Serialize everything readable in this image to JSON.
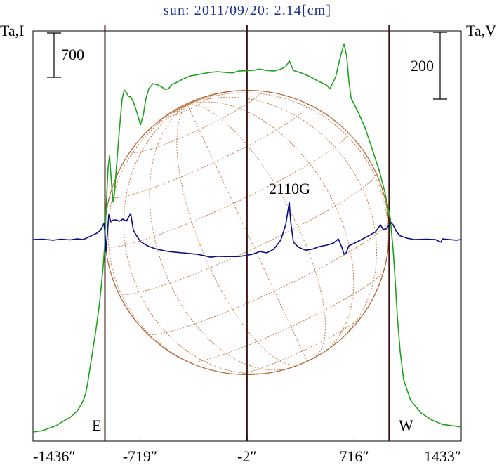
{
  "chart_data": {
    "type": "line",
    "title": "sun: 2011/09/20: 2.14[cm]",
    "xlabel": "",
    "ylabel_left": "Ta,I",
    "ylabel_right": "Ta,V",
    "xlim": [
      -1436,
      1433
    ],
    "xticks": [
      -1436,
      -719,
      -2,
      716,
      1433
    ],
    "xtick_labels": [
      "-1436″",
      "-719″",
      "-2″",
      "716″",
      "1433″"
    ],
    "scale_bars": {
      "left": "700",
      "right": "200"
    },
    "vlines": [
      -954,
      -2,
      950
    ],
    "limb_labels": {
      "east": "E",
      "west": "W"
    },
    "annotations": [
      {
        "text": "2110G"
      }
    ],
    "grid": false,
    "colors": {
      "title": "#203090",
      "reference_lines": "#3c1414",
      "disk": "#b4622e",
      "disk_grid": "#c47a4a"
    },
    "series": [
      {
        "axis": "left",
        "color": "#1fa01f",
        "points": [
          [
            -1436,
            0
          ],
          [
            -1375,
            20
          ],
          [
            -1328,
            60
          ],
          [
            -1281,
            100
          ],
          [
            -1234,
            170
          ],
          [
            -1187,
            230
          ],
          [
            -1140,
            330
          ],
          [
            -1102,
            480
          ],
          [
            -1083,
            610
          ],
          [
            -1069,
            780
          ],
          [
            -1055,
            1000
          ],
          [
            -1036,
            1280
          ],
          [
            -1013,
            1630
          ],
          [
            -989,
            2060
          ],
          [
            -966,
            2610
          ],
          [
            -956,
            2940
          ],
          [
            -947,
            3500
          ],
          [
            -933,
            4170
          ],
          [
            -923,
            4370
          ],
          [
            -914,
            4060
          ],
          [
            -900,
            3640
          ],
          [
            -890,
            3780
          ],
          [
            -876,
            4220
          ],
          [
            -857,
            4780
          ],
          [
            -839,
            5260
          ],
          [
            -825,
            5410
          ],
          [
            -810,
            5370
          ],
          [
            -796,
            5310
          ],
          [
            -782,
            5300
          ],
          [
            -763,
            5220
          ],
          [
            -740,
            5060
          ],
          [
            -716,
            4860
          ],
          [
            -698,
            5000
          ],
          [
            -679,
            5280
          ],
          [
            -660,
            5430
          ],
          [
            -632,
            5510
          ],
          [
            -600,
            5490
          ],
          [
            -575,
            5460
          ],
          [
            -550,
            5420
          ],
          [
            -528,
            5430
          ],
          [
            -505,
            5500
          ],
          [
            -481,
            5520
          ],
          [
            -434,
            5580
          ],
          [
            -387,
            5630
          ],
          [
            -340,
            5650
          ],
          [
            -293,
            5670
          ],
          [
            -246,
            5690
          ],
          [
            -200,
            5700
          ],
          [
            -152,
            5690
          ],
          [
            -100,
            5680
          ],
          [
            -58,
            5710
          ],
          [
            36,
            5720
          ],
          [
            80,
            5740
          ],
          [
            130,
            5720
          ],
          [
            180,
            5710
          ],
          [
            224,
            5740
          ],
          [
            257,
            5780
          ],
          [
            281,
            5870
          ],
          [
            309,
            5720
          ],
          [
            360,
            5680
          ],
          [
            412,
            5630
          ],
          [
            483,
            5540
          ],
          [
            530,
            5490
          ],
          [
            553,
            5430
          ],
          [
            591,
            5610
          ],
          [
            624,
            5940
          ],
          [
            648,
            6140
          ],
          [
            666,
            5940
          ],
          [
            680,
            5560
          ],
          [
            695,
            5280
          ],
          [
            742,
            5060
          ],
          [
            789,
            4810
          ],
          [
            836,
            4480
          ],
          [
            883,
            4140
          ],
          [
            920,
            3810
          ],
          [
            939,
            3590
          ],
          [
            958,
            3370
          ],
          [
            967,
            3140
          ],
          [
            977,
            2890
          ],
          [
            991,
            2390
          ],
          [
            1005,
            1830
          ],
          [
            1024,
            1280
          ],
          [
            1047,
            830
          ],
          [
            1094,
            500
          ],
          [
            1165,
            300
          ],
          [
            1236,
            190
          ],
          [
            1306,
            120
          ],
          [
            1433,
            80
          ]
        ]
      },
      {
        "axis": "right",
        "color": "#0c0c88",
        "points": [
          [
            -1436,
            0
          ],
          [
            -1375,
            1
          ],
          [
            -1300,
            -2
          ],
          [
            -1250,
            1
          ],
          [
            -1187,
            -1
          ],
          [
            -1140,
            2
          ],
          [
            -1100,
            0
          ],
          [
            -1069,
            6
          ],
          [
            -1046,
            11
          ],
          [
            -1008,
            19
          ],
          [
            -985,
            27
          ],
          [
            -961,
            48
          ],
          [
            -952,
            13
          ],
          [
            -947,
            -36
          ],
          [
            -942,
            -8
          ],
          [
            -928,
            74
          ],
          [
            -914,
            53
          ],
          [
            -900,
            58
          ],
          [
            -881,
            59
          ],
          [
            -857,
            55
          ],
          [
            -834,
            61
          ],
          [
            -810,
            55
          ],
          [
            -782,
            78
          ],
          [
            -763,
            27
          ],
          [
            -740,
            10
          ],
          [
            -716,
            -6
          ],
          [
            -669,
            -19
          ],
          [
            -622,
            -27
          ],
          [
            -575,
            -32
          ],
          [
            -528,
            -36
          ],
          [
            -481,
            -38
          ],
          [
            -434,
            -40
          ],
          [
            -387,
            -42
          ],
          [
            -340,
            -44
          ],
          [
            -293,
            -48
          ],
          [
            -246,
            -53
          ],
          [
            -200,
            -50
          ],
          [
            -152,
            -51
          ],
          [
            -58,
            -51
          ],
          [
            -10,
            -48
          ],
          [
            36,
            -44
          ],
          [
            83,
            -36
          ],
          [
            130,
            -40
          ],
          [
            177,
            -29
          ],
          [
            224,
            -2
          ],
          [
            257,
            44
          ],
          [
            281,
            112
          ],
          [
            290,
            55
          ],
          [
            309,
            -8
          ],
          [
            342,
            -23
          ],
          [
            389,
            -32
          ],
          [
            436,
            -29
          ],
          [
            483,
            -21
          ],
          [
            530,
            -17
          ],
          [
            577,
            -11
          ],
          [
            610,
            2
          ],
          [
            633,
            -23
          ],
          [
            648,
            -44
          ],
          [
            662,
            -40
          ],
          [
            680,
            -19
          ],
          [
            718,
            -11
          ],
          [
            765,
            0
          ],
          [
            812,
            11
          ],
          [
            859,
            23
          ],
          [
            892,
            44
          ],
          [
            910,
            30
          ],
          [
            930,
            32
          ],
          [
            963,
            51
          ],
          [
            977,
            44
          ],
          [
            1000,
            23
          ],
          [
            1024,
            11
          ],
          [
            1071,
            4
          ],
          [
            1118,
            0
          ],
          [
            1200,
            1
          ],
          [
            1259,
            0
          ],
          [
            1297,
            -8
          ],
          [
            1306,
            2
          ],
          [
            1353,
            0
          ],
          [
            1400,
            -2
          ],
          [
            1433,
            0
          ]
        ]
      }
    ]
  }
}
